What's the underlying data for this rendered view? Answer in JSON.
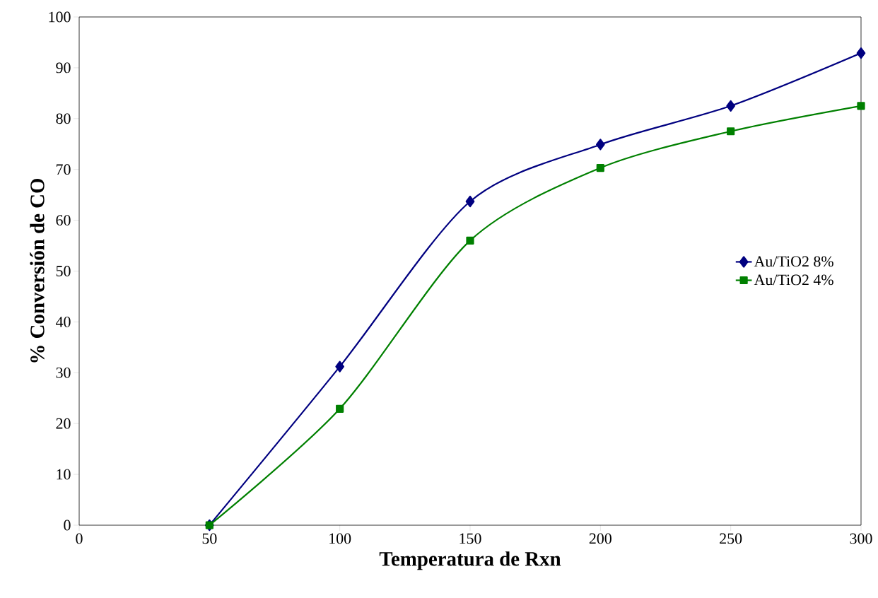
{
  "chart_data": {
    "type": "line",
    "xlabel": "Temperatura de Rxn",
    "ylabel": "% Conversión de CO",
    "x": [
      50,
      100,
      150,
      200,
      250,
      300
    ],
    "series": [
      {
        "name": "Au/TiO2   8%",
        "color": "#000080",
        "marker": "diamond",
        "values": [
          0,
          31.2,
          63.7,
          74.9,
          82.5,
          92.9
        ]
      },
      {
        "name": "Au/TiO2   4%",
        "color": "#008000",
        "marker": "square",
        "values": [
          0,
          22.9,
          56.0,
          70.3,
          77.5,
          82.5
        ]
      }
    ],
    "xlim": [
      0,
      300
    ],
    "xticks": [
      0,
      50,
      100,
      150,
      200,
      250,
      300
    ],
    "ylim": [
      0,
      100
    ],
    "yticks": [
      0,
      10,
      20,
      30,
      40,
      50,
      60,
      70,
      80,
      90,
      100
    ],
    "grid": false,
    "legend": "right",
    "line_style": "solid"
  }
}
